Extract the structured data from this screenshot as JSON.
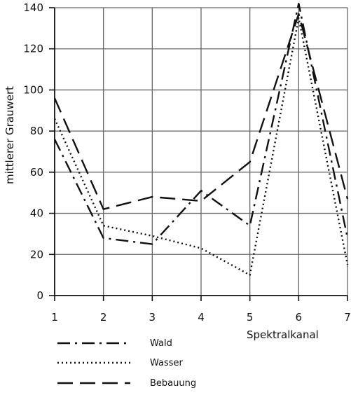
{
  "chart_data": {
    "type": "line",
    "title": "",
    "xlabel": "Spektralkanal",
    "ylabel": "mittlerer Grauwert",
    "x": [
      1,
      2,
      3,
      4,
      5,
      6,
      7
    ],
    "xlim": [
      1,
      7
    ],
    "ylim": [
      0,
      140
    ],
    "xticks": [
      1,
      2,
      3,
      4,
      5,
      6,
      7
    ],
    "yticks": [
      0,
      20,
      40,
      60,
      80,
      100,
      120,
      140
    ],
    "grid": true,
    "legend_position": "bottom-left",
    "series": [
      {
        "name": "Wald",
        "style": "dash-dot",
        "color": "#111111",
        "values": [
          76,
          28,
          25,
          51,
          34,
          142,
          28
        ]
      },
      {
        "name": "Wasser",
        "style": "dotted",
        "color": "#111111",
        "values": [
          86,
          34,
          29,
          23,
          10,
          135,
          15
        ]
      },
      {
        "name": "Bebauung",
        "style": "dashed",
        "color": "#111111",
        "values": [
          96,
          42,
          48,
          46,
          65,
          137,
          47
        ]
      }
    ]
  }
}
